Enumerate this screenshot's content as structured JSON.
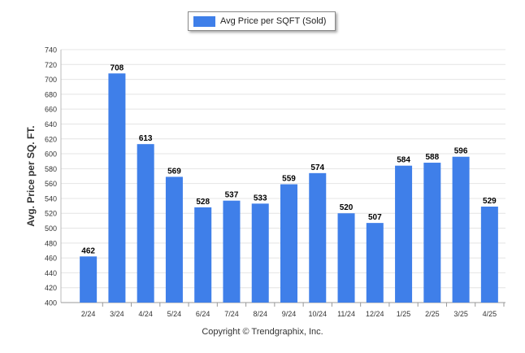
{
  "legend": {
    "label": "Avg Price per SQFT (Sold)"
  },
  "copyright": "Copyright © Trendgraphix, Inc.",
  "chart_data": {
    "type": "bar",
    "ylabel": "Avg. Price per SQ. FT.",
    "xlabel": "",
    "ylim": [
      400,
      740
    ],
    "ytick_step": 20,
    "grid": true,
    "legend_position": "top-center",
    "categories": [
      "2/24",
      "3/24",
      "4/24",
      "5/24",
      "6/24",
      "7/24",
      "8/24",
      "9/24",
      "10/24",
      "11/24",
      "12/24",
      "1/25",
      "2/25",
      "3/25",
      "4/25"
    ],
    "series": [
      {
        "name": "Avg Price per SQFT (Sold)",
        "values": [
          462,
          708,
          613,
          569,
          528,
          537,
          533,
          559,
          574,
          520,
          507,
          584,
          588,
          596,
          529
        ]
      }
    ],
    "bar_color": "#3f7fe9"
  }
}
